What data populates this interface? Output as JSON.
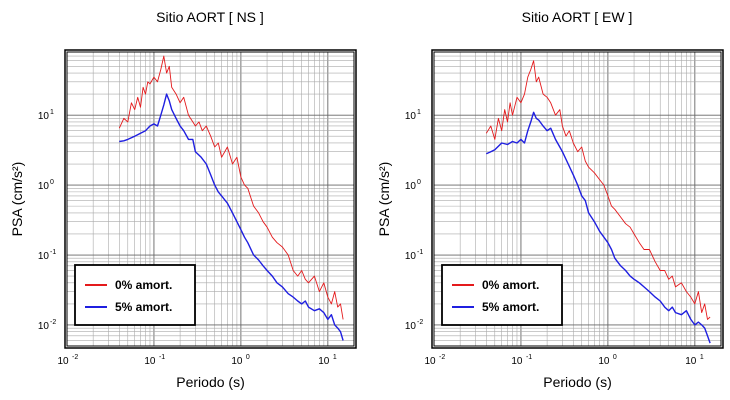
{
  "chart_data": [
    {
      "type": "line",
      "title": "Sitio AORT [ NS ]",
      "xlabel": "Periodo (s)",
      "ylabel": "PSA (cm/s²)",
      "xscale": "log",
      "yscale": "log",
      "xlim": [
        0.01,
        20
      ],
      "ylim": [
        0.005,
        80
      ],
      "grid": true,
      "legend": "lower-left",
      "xticks": [
        0.01,
        0.1,
        1,
        10
      ],
      "yticks": [
        0.01,
        0.1,
        1,
        10
      ],
      "series": [
        {
          "name": "0% amort.",
          "color": "#e41a1c",
          "x": [
            0.04,
            0.045,
            0.05,
            0.055,
            0.06,
            0.065,
            0.07,
            0.075,
            0.08,
            0.085,
            0.09,
            0.1,
            0.11,
            0.12,
            0.13,
            0.14,
            0.15,
            0.16,
            0.18,
            0.2,
            0.22,
            0.25,
            0.28,
            0.3,
            0.33,
            0.36,
            0.4,
            0.45,
            0.5,
            0.55,
            0.6,
            0.7,
            0.8,
            0.9,
            1.0,
            1.1,
            1.2,
            1.4,
            1.6,
            1.8,
            2.0,
            2.3,
            2.6,
            3.0,
            3.5,
            4.0,
            4.5,
            5.0,
            5.5,
            6.0,
            7.0,
            8.0,
            9.0,
            10.0,
            11.0,
            12.0,
            13.0,
            14.0,
            15.0
          ],
          "y": [
            6.5,
            9,
            8,
            15,
            12,
            18,
            13,
            25,
            20,
            30,
            28,
            35,
            30,
            45,
            70,
            40,
            50,
            25,
            20,
            15,
            18,
            10,
            8,
            7,
            8,
            6,
            7,
            5,
            3.5,
            4,
            2.5,
            3.5,
            2.0,
            2.5,
            1.3,
            1.0,
            0.9,
            0.5,
            0.4,
            0.3,
            0.25,
            0.18,
            0.15,
            0.13,
            0.1,
            0.06,
            0.05,
            0.06,
            0.045,
            0.04,
            0.05,
            0.03,
            0.04,
            0.025,
            0.02,
            0.03,
            0.018,
            0.02,
            0.012
          ]
        },
        {
          "name": "5% amort.",
          "color": "#1f1fe0",
          "x": [
            0.04,
            0.045,
            0.05,
            0.06,
            0.07,
            0.08,
            0.09,
            0.1,
            0.11,
            0.12,
            0.13,
            0.14,
            0.15,
            0.16,
            0.18,
            0.2,
            0.22,
            0.25,
            0.28,
            0.3,
            0.35,
            0.4,
            0.45,
            0.5,
            0.55,
            0.6,
            0.7,
            0.8,
            0.9,
            1.0,
            1.1,
            1.2,
            1.4,
            1.6,
            1.8,
            2.0,
            2.3,
            2.6,
            3.0,
            3.5,
            4.0,
            4.5,
            5.0,
            5.5,
            6.0,
            7.0,
            8.0,
            9.0,
            10.0,
            11.0,
            12.0,
            13.0,
            14.0,
            15.0
          ],
          "y": [
            4.2,
            4.3,
            4.5,
            5,
            5.5,
            6,
            7,
            7.5,
            7,
            10,
            14,
            20,
            16,
            12,
            9,
            7,
            6,
            4.5,
            4.5,
            3,
            2.5,
            2.0,
            1.4,
            1.0,
            0.8,
            0.7,
            0.55,
            0.4,
            0.3,
            0.23,
            0.18,
            0.15,
            0.1,
            0.085,
            0.07,
            0.06,
            0.05,
            0.04,
            0.035,
            0.028,
            0.025,
            0.022,
            0.02,
            0.022,
            0.018,
            0.016,
            0.017,
            0.015,
            0.012,
            0.014,
            0.01,
            0.009,
            0.008,
            0.006
          ]
        }
      ]
    },
    {
      "type": "line",
      "title": "Sitio AORT [ EW ]",
      "xlabel": "Periodo (s)",
      "ylabel": "PSA (cm/s²)",
      "xscale": "log",
      "yscale": "log",
      "xlim": [
        0.01,
        20
      ],
      "ylim": [
        0.005,
        80
      ],
      "grid": true,
      "legend": "lower-left",
      "xticks": [
        0.01,
        0.1,
        1,
        10
      ],
      "yticks": [
        0.01,
        0.1,
        1,
        10
      ],
      "series": [
        {
          "name": "0% amort.",
          "color": "#e41a1c",
          "x": [
            0.04,
            0.045,
            0.05,
            0.055,
            0.06,
            0.065,
            0.07,
            0.075,
            0.08,
            0.09,
            0.1,
            0.11,
            0.12,
            0.13,
            0.14,
            0.15,
            0.16,
            0.18,
            0.2,
            0.22,
            0.25,
            0.28,
            0.3,
            0.33,
            0.36,
            0.4,
            0.45,
            0.5,
            0.55,
            0.6,
            0.7,
            0.8,
            0.9,
            1.0,
            1.1,
            1.2,
            1.4,
            1.6,
            1.8,
            2.0,
            2.3,
            2.6,
            3.0,
            3.5,
            4.0,
            4.5,
            5.0,
            5.5,
            6.0,
            7.0,
            8.0,
            9.0,
            10.0,
            11.0,
            12.0,
            13.0,
            14.0,
            15.0
          ],
          "y": [
            5.5,
            7,
            4.5,
            9,
            6,
            12,
            8,
            15,
            10,
            18,
            15,
            20,
            35,
            45,
            60,
            30,
            35,
            20,
            18,
            15,
            10,
            12,
            7,
            5,
            6,
            4,
            3,
            3.5,
            2.2,
            1.8,
            1.5,
            1.2,
            1.0,
            0.7,
            0.5,
            0.45,
            0.35,
            0.28,
            0.25,
            0.2,
            0.15,
            0.12,
            0.12,
            0.08,
            0.06,
            0.06,
            0.045,
            0.05,
            0.035,
            0.04,
            0.03,
            0.025,
            0.02,
            0.03,
            0.015,
            0.02,
            0.012,
            0.013
          ]
        },
        {
          "name": "5% amort.",
          "color": "#1f1fe0",
          "x": [
            0.04,
            0.045,
            0.05,
            0.06,
            0.07,
            0.08,
            0.09,
            0.1,
            0.11,
            0.12,
            0.13,
            0.14,
            0.15,
            0.16,
            0.18,
            0.2,
            0.22,
            0.25,
            0.28,
            0.3,
            0.35,
            0.4,
            0.45,
            0.5,
            0.55,
            0.6,
            0.7,
            0.8,
            0.9,
            1.0,
            1.1,
            1.2,
            1.4,
            1.6,
            1.8,
            2.0,
            2.3,
            2.6,
            3.0,
            3.5,
            4.0,
            4.5,
            5.0,
            5.5,
            6.0,
            7.0,
            8.0,
            9.0,
            10.0,
            11.0,
            12.0,
            13.0,
            14.0,
            15.0
          ],
          "y": [
            2.8,
            3.0,
            3.2,
            4.0,
            3.8,
            4.2,
            4.0,
            4.5,
            4.0,
            6,
            8,
            11,
            9,
            8.5,
            7,
            6,
            6.5,
            4.5,
            3.5,
            3,
            2,
            1.4,
            1.0,
            0.7,
            0.6,
            0.4,
            0.3,
            0.22,
            0.18,
            0.15,
            0.12,
            0.09,
            0.07,
            0.06,
            0.05,
            0.045,
            0.04,
            0.035,
            0.03,
            0.025,
            0.022,
            0.018,
            0.016,
            0.018,
            0.015,
            0.014,
            0.016,
            0.012,
            0.01,
            0.011,
            0.01,
            0.009,
            0.007,
            0.0055
          ]
        }
      ]
    }
  ]
}
